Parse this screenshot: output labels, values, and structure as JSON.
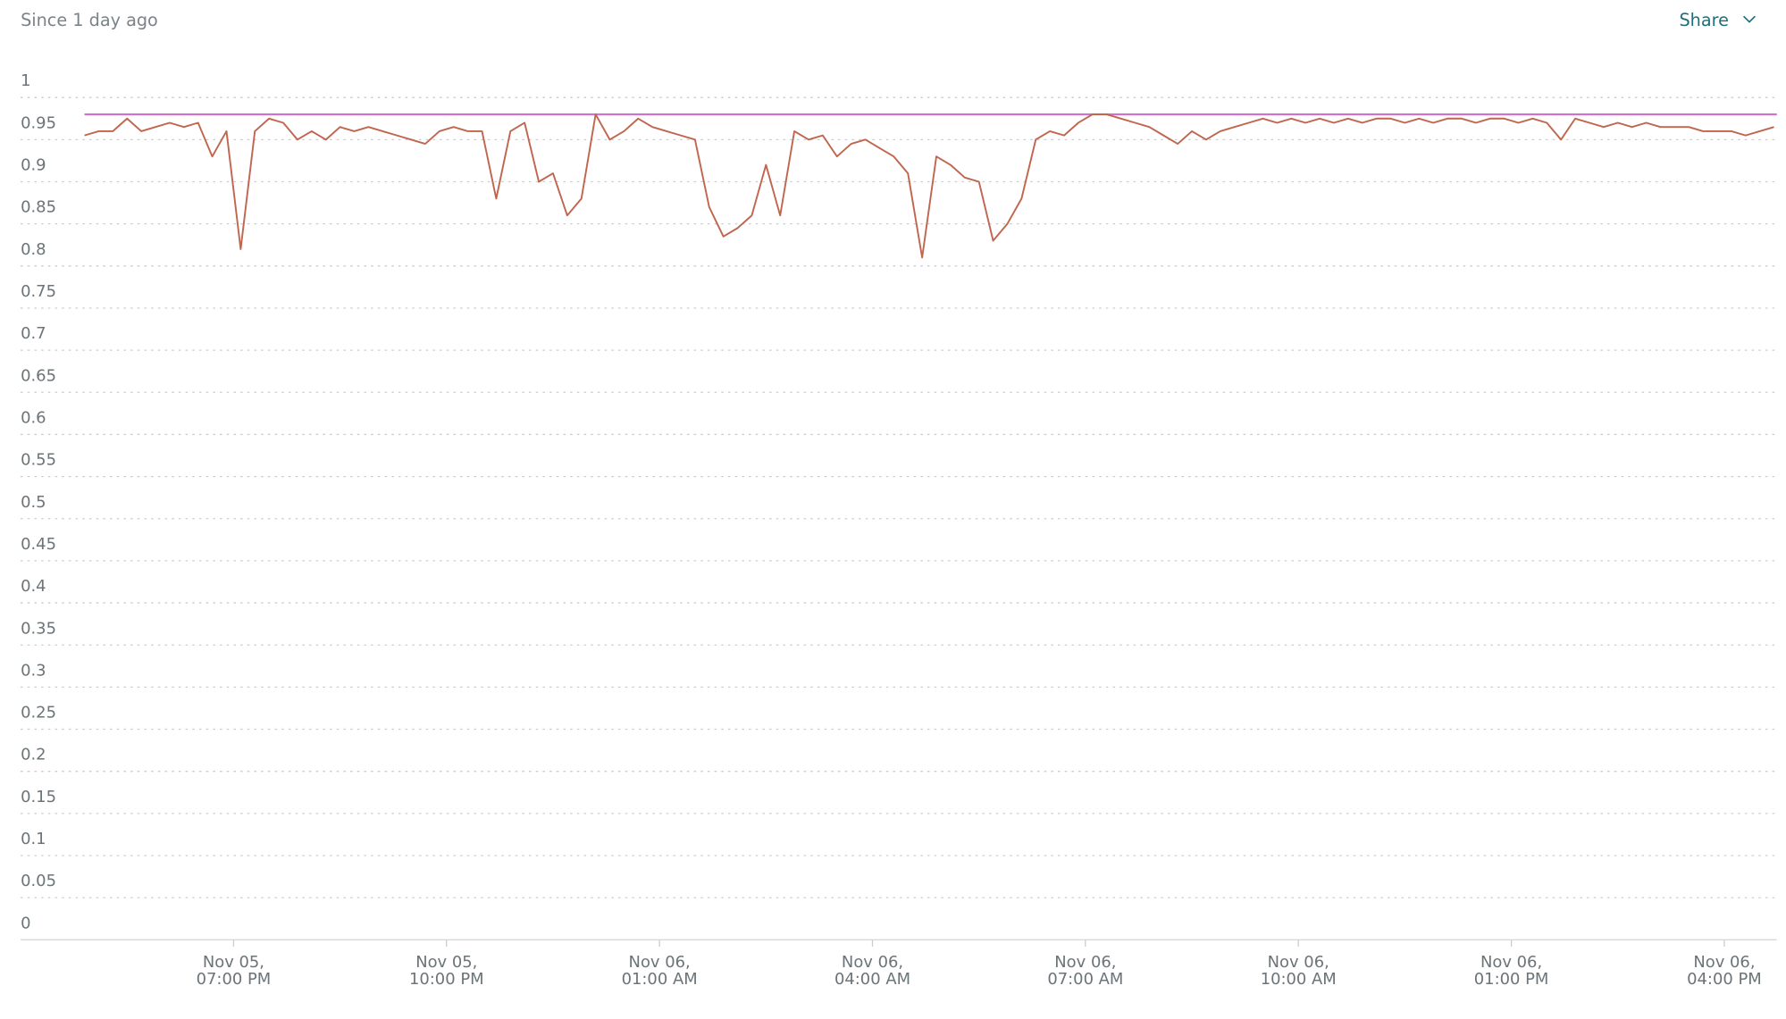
{
  "header": {
    "subtitle": "Since 1 day ago",
    "share": "Share"
  },
  "chart_data": {
    "type": "line",
    "x": [
      16.9,
      17.1,
      17.3,
      17.5,
      17.7,
      17.9,
      18.1,
      18.3,
      18.5,
      18.7,
      18.9,
      19.1,
      19.3,
      19.5,
      19.7,
      19.9,
      20.1,
      20.3,
      20.5,
      20.7,
      20.9,
      21.1,
      21.3,
      21.5,
      21.7,
      21.9,
      22.1,
      22.3,
      22.5,
      22.7,
      22.9,
      23.1,
      23.3,
      23.5,
      23.7,
      23.9,
      24.1,
      24.3,
      24.5,
      24.7,
      24.9,
      25.1,
      25.3,
      25.5,
      25.7,
      25.9,
      26.1,
      26.3,
      26.5,
      26.7,
      26.9,
      27.1,
      27.3,
      27.5,
      27.7,
      27.9,
      28.1,
      28.3,
      28.5,
      28.7,
      28.9,
      29.1,
      29.3,
      29.5,
      29.7,
      29.9,
      30.1,
      30.3,
      30.5,
      30.7,
      30.9,
      31.1,
      31.3,
      31.5,
      31.7,
      31.9,
      32.1,
      32.3,
      32.5,
      32.7,
      32.9,
      33.1,
      33.3,
      33.5,
      33.7,
      33.9,
      34.1,
      34.3,
      34.5,
      34.7,
      34.9,
      35.1,
      35.3,
      35.5,
      35.7,
      35.9,
      36.1,
      36.3,
      36.5,
      36.7,
      36.9,
      37.1,
      37.3,
      37.5,
      37.7,
      37.9,
      38.1,
      38.3,
      38.5,
      38.7,
      38.9,
      39.1,
      39.3,
      39.5,
      39.7,
      39.9,
      40.1,
      40.3,
      40.5,
      40.7
    ],
    "series": [
      {
        "color": "#c0664f",
        "values": [
          0.955,
          0.96,
          0.96,
          0.975,
          0.96,
          0.965,
          0.97,
          0.965,
          0.97,
          0.93,
          0.96,
          0.82,
          0.96,
          0.975,
          0.97,
          0.95,
          0.96,
          0.95,
          0.965,
          0.96,
          0.965,
          0.96,
          0.955,
          0.95,
          0.945,
          0.96,
          0.965,
          0.96,
          0.96,
          0.88,
          0.96,
          0.97,
          0.9,
          0.91,
          0.86,
          0.88,
          0.98,
          0.95,
          0.96,
          0.975,
          0.965,
          0.96,
          0.955,
          0.95,
          0.87,
          0.835,
          0.845,
          0.86,
          0.92,
          0.86,
          0.96,
          0.95,
          0.955,
          0.93,
          0.945,
          0.95,
          0.94,
          0.93,
          0.91,
          0.81,
          0.93,
          0.92,
          0.905,
          0.9,
          0.83,
          0.85,
          0.88,
          0.95,
          0.96,
          0.955,
          0.97,
          0.98,
          0.98,
          0.975,
          0.97,
          0.965,
          0.955,
          0.945,
          0.96,
          0.95,
          0.96,
          0.965,
          0.97,
          0.975,
          0.97,
          0.975,
          0.97,
          0.975,
          0.97,
          0.975,
          0.97,
          0.975,
          0.975,
          0.97,
          0.975,
          0.97,
          0.975,
          0.975,
          0.97,
          0.975,
          0.975,
          0.97,
          0.975,
          0.97,
          0.95,
          0.975,
          0.97,
          0.965,
          0.97,
          0.965,
          0.97,
          0.965,
          0.965,
          0.965,
          0.96,
          0.96,
          0.96,
          0.955,
          0.96,
          0.965
        ]
      }
    ],
    "reference_line": {
      "value": 0.98,
      "color": "#d36fd3"
    },
    "xlim": [
      16,
      40.74
    ],
    "xticks": [
      {
        "value": 19,
        "label": [
          "Nov 05,",
          "07:00 PM"
        ]
      },
      {
        "value": 22,
        "label": [
          "Nov 05,",
          "10:00 PM"
        ]
      },
      {
        "value": 25,
        "label": [
          "Nov 06,",
          "01:00 AM"
        ]
      },
      {
        "value": 28,
        "label": [
          "Nov 06,",
          "04:00 AM"
        ]
      },
      {
        "value": 31,
        "label": [
          "Nov 06,",
          "07:00 AM"
        ]
      },
      {
        "value": 34,
        "label": [
          "Nov 06,",
          "10:00 AM"
        ]
      },
      {
        "value": 37,
        "label": [
          "Nov 06,",
          "01:00 PM"
        ]
      },
      {
        "value": 40,
        "label": [
          "Nov 06,",
          "04:00 PM"
        ]
      }
    ],
    "ylim": [
      0,
      1
    ],
    "yticks": [
      0,
      0.05,
      0.1,
      0.15,
      0.2,
      0.25,
      0.3,
      0.35,
      0.4,
      0.45,
      0.5,
      0.55,
      0.6,
      0.65,
      0.7,
      0.75,
      0.8,
      0.85,
      0.9,
      0.95,
      1
    ],
    "grid": true
  }
}
